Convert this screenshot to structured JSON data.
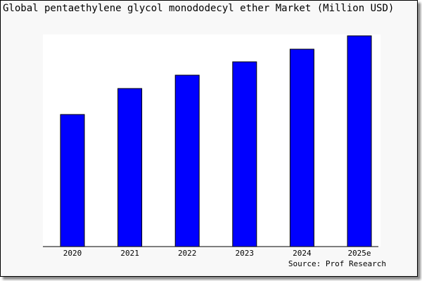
{
  "chart_data": {
    "type": "bar",
    "title": "Global pentaethylene glycol monododecyl ether Market (Million USD)",
    "categories": [
      "2020",
      "2021",
      "2022",
      "2023",
      "2024",
      "2025e"
    ],
    "values": [
      188,
      225,
      244,
      263,
      281,
      300
    ],
    "ylim": [
      0,
      300
    ],
    "xlabel": "",
    "ylabel": "",
    "grid": false,
    "bar_color": "#0000ff",
    "source": "Source: Prof Research"
  }
}
